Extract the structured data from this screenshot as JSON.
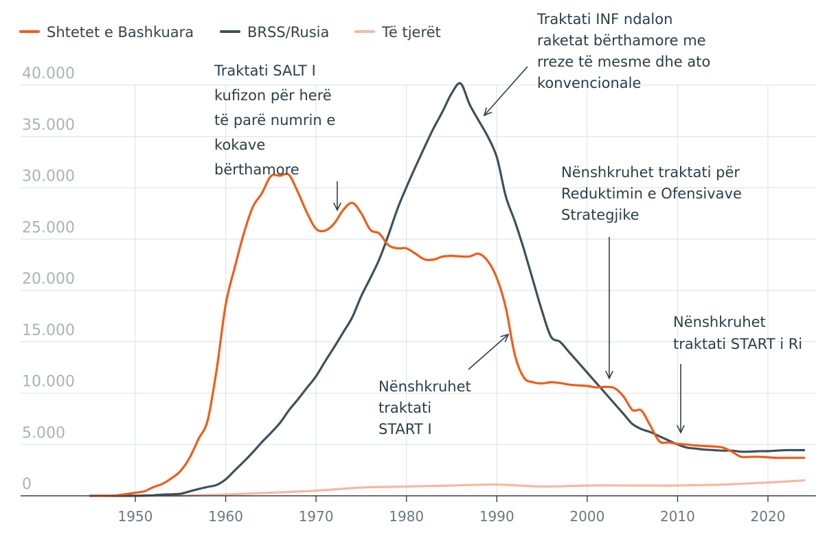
{
  "chart_data": {
    "type": "line",
    "title": "",
    "xlabel": "",
    "ylabel": "",
    "xlim": [
      1945,
      2024
    ],
    "ylim": [
      0,
      40000
    ],
    "grid": true,
    "legend_position": "top-left",
    "y_ticks": [
      {
        "value": 0,
        "label": "0"
      },
      {
        "value": 5000,
        "label": "5.000"
      },
      {
        "value": 10000,
        "label": "10.000"
      },
      {
        "value": 15000,
        "label": "15.000"
      },
      {
        "value": 20000,
        "label": "20.000"
      },
      {
        "value": 25000,
        "label": "25.000"
      },
      {
        "value": 30000,
        "label": "30.000"
      },
      {
        "value": 35000,
        "label": "35.000"
      },
      {
        "value": 40000,
        "label": "40.000"
      }
    ],
    "x_ticks": [
      {
        "value": 1950,
        "label": "1950"
      },
      {
        "value": 1960,
        "label": "1960"
      },
      {
        "value": 1970,
        "label": "1970"
      },
      {
        "value": 1980,
        "label": "1980"
      },
      {
        "value": 1990,
        "label": "1990"
      },
      {
        "value": 2000,
        "label": "2000"
      },
      {
        "value": 2010,
        "label": "2010"
      },
      {
        "value": 2020,
        "label": "2020"
      }
    ],
    "series": [
      {
        "name": "Shtetet e Bashkuara",
        "color": "#f25c16",
        "x": [
          1945,
          1946,
          1947,
          1948,
          1949,
          1950,
          1951,
          1952,
          1953,
          1954,
          1955,
          1956,
          1957,
          1958,
          1959,
          1960,
          1961,
          1962,
          1963,
          1964,
          1965,
          1966,
          1967,
          1968,
          1969,
          1970,
          1971,
          1972,
          1973,
          1974,
          1975,
          1976,
          1977,
          1978,
          1979,
          1980,
          1981,
          1982,
          1983,
          1984,
          1985,
          1986,
          1987,
          1988,
          1989,
          1990,
          1991,
          1992,
          1993,
          1994,
          1995,
          1996,
          1997,
          1998,
          1999,
          2000,
          2001,
          2002,
          2003,
          2004,
          2005,
          2006,
          2007,
          2008,
          2009,
          2010,
          2011,
          2012,
          2013,
          2014,
          2015,
          2016,
          2017,
          2018,
          2019,
          2020,
          2021,
          2022,
          2023,
          2024
        ],
        "values": [
          2,
          9,
          13,
          50,
          170,
          299,
          438,
          841,
          1169,
          1703,
          2422,
          3692,
          5543,
          7345,
          12298,
          18638,
          22229,
          25540,
          28133,
          29463,
          31139,
          31175,
          31255,
          29561,
          27552,
          26008,
          25830,
          26516,
          27835,
          28537,
          27519,
          25914,
          25542,
          24418,
          24107,
          24104,
          23576,
          23031,
          23007,
          23305,
          23368,
          23317,
          23317,
          23575,
          22866,
          21211,
          18306,
          13708,
          11511,
          11061,
          10953,
          11064,
          10986,
          10830,
          10756,
          10700,
          10564,
          10608,
          10500,
          9700,
          8360,
          8305,
          6800,
          5300,
          5200,
          5066,
          5000,
          4900,
          4850,
          4800,
          4700,
          4300,
          3800,
          3800,
          3800,
          3750,
          3700,
          3700,
          3700,
          3700
        ]
      },
      {
        "name": "BRSS/Rusia",
        "color": "#3d505c",
        "x": [
          1945,
          1946,
          1947,
          1948,
          1949,
          1950,
          1951,
          1952,
          1953,
          1954,
          1955,
          1956,
          1957,
          1958,
          1959,
          1960,
          1961,
          1962,
          1963,
          1964,
          1965,
          1966,
          1967,
          1968,
          1969,
          1970,
          1971,
          1972,
          1973,
          1974,
          1975,
          1976,
          1977,
          1978,
          1979,
          1980,
          1981,
          1982,
          1983,
          1984,
          1985,
          1986,
          1987,
          1988,
          1989,
          1990,
          1991,
          1992,
          1993,
          1994,
          1995,
          1996,
          1997,
          1998,
          1999,
          2000,
          2001,
          2002,
          2003,
          2004,
          2005,
          2006,
          2007,
          2008,
          2009,
          2010,
          2011,
          2012,
          2013,
          2014,
          2015,
          2016,
          2017,
          2018,
          2019,
          2020,
          2021,
          2022,
          2023,
          2024
        ],
        "values": [
          0,
          0,
          0,
          0,
          1,
          5,
          25,
          50,
          120,
          150,
          200,
          426,
          660,
          869,
          1060,
          1605,
          2471,
          3322,
          4238,
          5221,
          6129,
          7089,
          8339,
          9399,
          10538,
          11643,
          13092,
          14478,
          15915,
          17385,
          19443,
          21205,
          23044,
          25393,
          27935,
          30062,
          32049,
          33952,
          35804,
          37431,
          39197,
          40159,
          38107,
          36538,
          35000,
          32980,
          29154,
          26734,
          24000,
          21000,
          18000,
          15500,
          15000,
          14000,
          13000,
          12000,
          11000,
          10000,
          9000,
          8000,
          7000,
          6500,
          6200,
          5800,
          5400,
          5000,
          4700,
          4600,
          4500,
          4450,
          4400,
          4400,
          4300,
          4300,
          4350,
          4350,
          4400,
          4450,
          4450,
          4450
        ]
      },
      {
        "name": "Të tjerët",
        "color": "#f5b8a2",
        "x": [
          1945,
          1950,
          1955,
          1960,
          1965,
          1970,
          1975,
          1980,
          1985,
          1990,
          1995,
          2000,
          2005,
          2010,
          2015,
          2020,
          2024
        ],
        "values": [
          0,
          0,
          10,
          130,
          300,
          500,
          800,
          900,
          1000,
          1100,
          900,
          1000,
          1000,
          1000,
          1100,
          1300,
          1500
        ]
      }
    ],
    "annotations": [
      {
        "lines": [
          "Traktati SALT I",
          "kufizon për herë",
          "të parë numrin e",
          "kokave",
          "bërthamore"
        ]
      },
      {
        "lines": [
          "Traktati INF ndalon",
          "raketat bërthamore me",
          "rreze të mesme dhe ato",
          "konvencionale"
        ]
      },
      {
        "lines": [
          "Nënshkruhet traktati për",
          "Reduktimin e Ofensivave",
          "Strategjike"
        ]
      },
      {
        "lines": [
          "Nënshkruhet",
          "traktati START i Ri"
        ]
      },
      {
        "lines": [
          "Nënshkruhet",
          "traktati",
          "START I"
        ]
      }
    ]
  }
}
